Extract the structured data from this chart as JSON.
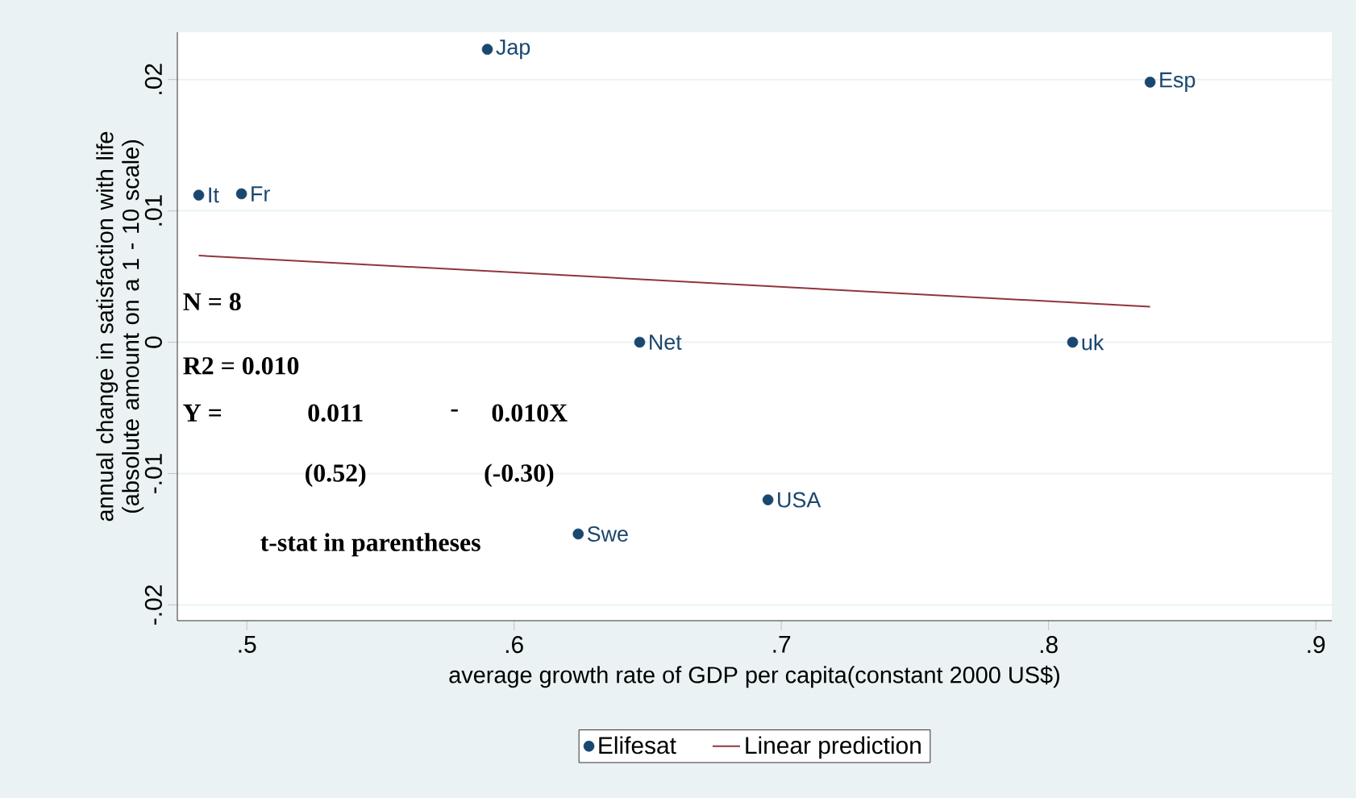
{
  "chart_data": {
    "type": "scatter",
    "xlabel": "average growth rate of GDP per capita(constant 2000 US$)",
    "ylabel": "annual change in satisfaction with life (absolute amount on a 1 - 10 scale)",
    "xlim": [
      0.474,
      0.906
    ],
    "ylim": [
      -0.0212,
      0.0236
    ],
    "xticks": [
      {
        "value": 0.5,
        "label": ".5"
      },
      {
        "value": 0.6,
        "label": ".6"
      },
      {
        "value": 0.7,
        "label": ".7"
      },
      {
        "value": 0.8,
        "label": ".8"
      },
      {
        "value": 0.9,
        "label": ".9"
      }
    ],
    "yticks": [
      {
        "value": -0.02,
        "label": "-.02"
      },
      {
        "value": -0.01,
        "label": "-.01"
      },
      0,
      {
        "value": 0.01,
        "label": ".01"
      },
      {
        "value": 0.02,
        "label": ".02"
      }
    ],
    "grid": "y",
    "legend": "bottom",
    "series": [
      {
        "name": "Elifesat",
        "type": "scatter",
        "marker": "circle",
        "color": "#1a476f",
        "x": [
          0.482,
          0.498,
          0.59,
          0.647,
          0.695,
          0.624,
          0.809,
          0.838
        ],
        "values": [
          0.0112,
          0.0113,
          0.0223,
          0,
          -0.012,
          -0.0146,
          0,
          0.0198
        ]
      },
      {
        "name": "Linear prediction",
        "type": "line",
        "marker": "none",
        "color": "#90353b",
        "x": [
          0.482,
          0.838
        ],
        "values": [
          0.0066,
          0.0027
        ]
      }
    ],
    "annotations": [
      {
        "text": "It",
        "x": 0.482,
        "y": 0.0112
      },
      {
        "text": "Fr",
        "x": 0.498,
        "y": 0.0113
      },
      {
        "text": "Jap",
        "x": 0.59,
        "y": 0.0223
      },
      {
        "text": "Net",
        "x": 0.647,
        "y": 0
      },
      {
        "text": "USA",
        "x": 0.695,
        "y": -0.012
      },
      {
        "text": "Swe",
        "x": 0.624,
        "y": -0.0146
      },
      {
        "text": "uk",
        "x": 0.809,
        "y": 0
      },
      {
        "text": "Esp",
        "x": 0.838,
        "y": 0.0198
      },
      "N = 8",
      "R2 = 0.010",
      "Y =",
      "0.011",
      "-",
      "0.010X",
      "(0.52)",
      "(-0.30)",
      "t-stat in parentheses"
    ]
  }
}
